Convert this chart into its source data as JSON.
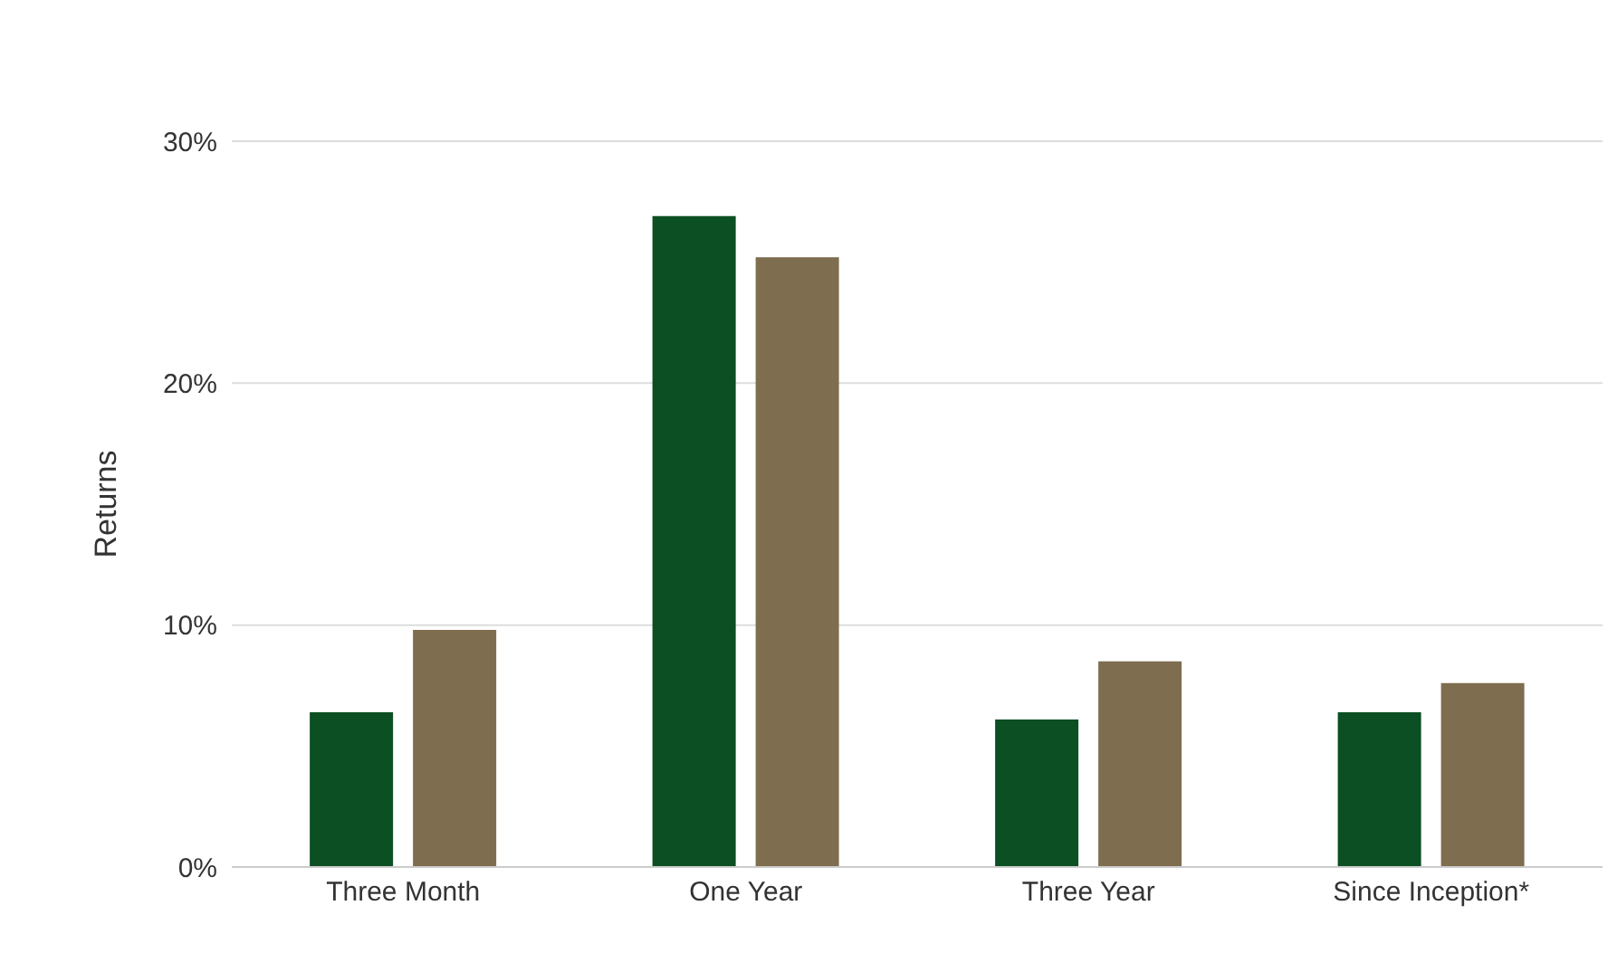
{
  "chart_data": {
    "type": "bar",
    "ylabel": "Returns",
    "categories": [
      "Three Month",
      "One Year",
      "Three Year",
      "Since Inception*"
    ],
    "series": [
      {
        "color": "#0b4f22",
        "values": [
          6.4,
          26.9,
          6.1,
          6.4
        ]
      },
      {
        "color": "#7f6d4f",
        "values": [
          9.8,
          25.2,
          8.5,
          7.6
        ]
      }
    ],
    "ylim": [
      0,
      30
    ],
    "yticks": [
      {
        "value": 0,
        "label": "0%"
      },
      {
        "value": 10,
        "label": "10%"
      },
      {
        "value": 20,
        "label": "20%"
      },
      {
        "value": 30,
        "label": "30%"
      }
    ],
    "grid": "y"
  }
}
